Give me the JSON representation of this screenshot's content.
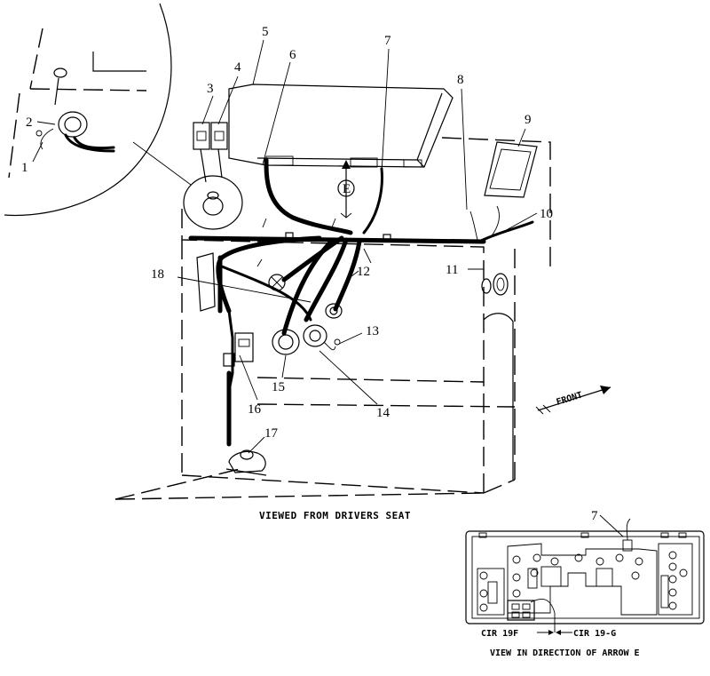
{
  "callouts": [
    {
      "id": "1",
      "label": "1"
    },
    {
      "id": "2",
      "label": "2"
    },
    {
      "id": "3",
      "label": "3"
    },
    {
      "id": "4",
      "label": "4"
    },
    {
      "id": "5",
      "label": "5"
    },
    {
      "id": "6",
      "label": "6"
    },
    {
      "id": "7",
      "label": "7"
    },
    {
      "id": "8",
      "label": "8"
    },
    {
      "id": "9",
      "label": "9"
    },
    {
      "id": "10",
      "label": "10"
    },
    {
      "id": "11",
      "label": "11"
    },
    {
      "id": "12",
      "label": "12"
    },
    {
      "id": "13",
      "label": "13"
    },
    {
      "id": "14",
      "label": "14"
    },
    {
      "id": "15",
      "label": "15"
    },
    {
      "id": "16",
      "label": "16"
    },
    {
      "id": "17",
      "label": "17"
    },
    {
      "id": "18",
      "label": "18"
    },
    {
      "id": "7b",
      "label": "7"
    }
  ],
  "arrow_label": "E",
  "front_label": "FRONT",
  "main_caption": "VIEWED FROM DRIVERS SEAT",
  "detail": {
    "caption": "VIEW IN DIRECTION OF ARROW E",
    "cir_left": "CIR 19F",
    "cir_right": "CIR 19-G"
  }
}
